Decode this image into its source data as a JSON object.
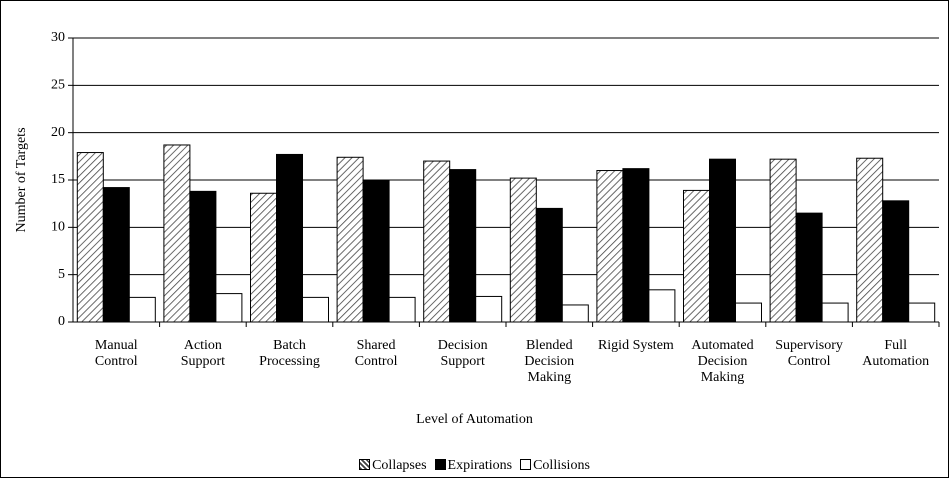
{
  "chart_data": {
    "type": "bar",
    "y_label": "Number of Targets",
    "x_label": "Level of Automation",
    "categories": [
      "Manual Control",
      "Action Support",
      "Batch Processing",
      "Shared Control",
      "Decision Support",
      "Blended Decision Making",
      "Rigid System",
      "Automated Decision Making",
      "Supervisory Control",
      "Full Automation"
    ],
    "series": [
      {
        "name": "Collapses",
        "color": "hatched",
        "values": [
          17.9,
          18.7,
          13.6,
          17.4,
          17.0,
          15.2,
          16.0,
          13.9,
          17.2,
          17.3
        ]
      },
      {
        "name": "Expirations",
        "color": "#000000",
        "values": [
          14.2,
          13.8,
          17.7,
          15.0,
          16.1,
          12.0,
          16.2,
          17.2,
          11.5,
          12.8
        ]
      },
      {
        "name": "Collisions",
        "color": "#ffffff",
        "values": [
          2.6,
          3.0,
          2.6,
          2.6,
          2.7,
          1.8,
          3.4,
          2.0,
          2.0,
          2.0
        ]
      }
    ],
    "ylim": [
      0,
      30
    ],
    "yticks": [
      0,
      5,
      10,
      15,
      20,
      25,
      30
    ],
    "grid": true,
    "legend": "bottom"
  }
}
